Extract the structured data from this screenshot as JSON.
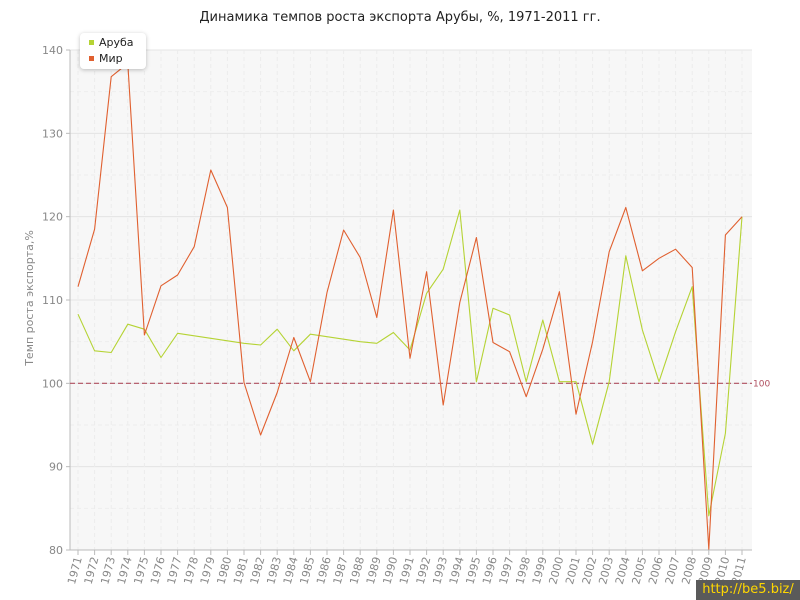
{
  "chart_data": {
    "type": "line",
    "title": "Динамика темпов роста экспорта Арубы, %, 1971-2011 гг.",
    "ylabel": "Темп роста экспорта,%",
    "xlabel": "",
    "ylim": [
      80,
      140
    ],
    "yticks": [
      80,
      90,
      100,
      110,
      120,
      130,
      140
    ],
    "grid": true,
    "legend_position": "top-left",
    "x": [
      "1971",
      "1972",
      "1973",
      "1974",
      "1975",
      "1976",
      "1977",
      "1978",
      "1979",
      "1980",
      "1981",
      "1982",
      "1983",
      "1984",
      "1985",
      "1986",
      "1987",
      "1988",
      "1989",
      "1990",
      "1991",
      "1992",
      "1993",
      "1994",
      "1995",
      "1996",
      "1997",
      "1998",
      "1999",
      "2000",
      "2001",
      "2002",
      "2003",
      "2004",
      "2005",
      "2006",
      "2007",
      "2008",
      "2009",
      "2010",
      "2011"
    ],
    "series": [
      {
        "name": "Аруба",
        "color": "#b5d334",
        "values": [
          108.3,
          103.9,
          103.7,
          107.1,
          106.5,
          103.1,
          106.0,
          105.7,
          105.4,
          105.1,
          104.8,
          104.6,
          106.5,
          103.9,
          105.9,
          105.6,
          105.3,
          105.0,
          104.8,
          106.1,
          104.0,
          110.8,
          113.7,
          120.8,
          100.2,
          109.0,
          108.2,
          100.2,
          107.6,
          100.2,
          100.2,
          92.7,
          100.2,
          115.3,
          106.4,
          100.2,
          106.2,
          111.6,
          84.1,
          94.0,
          120.0
        ]
      },
      {
        "name": "Мир",
        "color": "#e06030",
        "values": [
          111.6,
          118.5,
          136.8,
          138.4,
          105.8,
          111.7,
          113.0,
          116.4,
          125.6,
          121.1,
          100.1,
          93.8,
          98.9,
          105.5,
          100.2,
          110.9,
          118.4,
          115.1,
          107.9,
          120.8,
          103.0,
          113.4,
          97.4,
          109.7,
          117.5,
          104.9,
          103.8,
          98.4,
          104.1,
          111.0,
          96.3,
          105.0,
          115.8,
          121.1,
          113.5,
          115.0,
          116.1,
          113.9,
          80.1,
          117.8,
          120.0
        ]
      }
    ],
    "reference_line": {
      "value": 100,
      "label": "100",
      "color": "#b05060"
    }
  },
  "watermark": "http://be5.biz/"
}
